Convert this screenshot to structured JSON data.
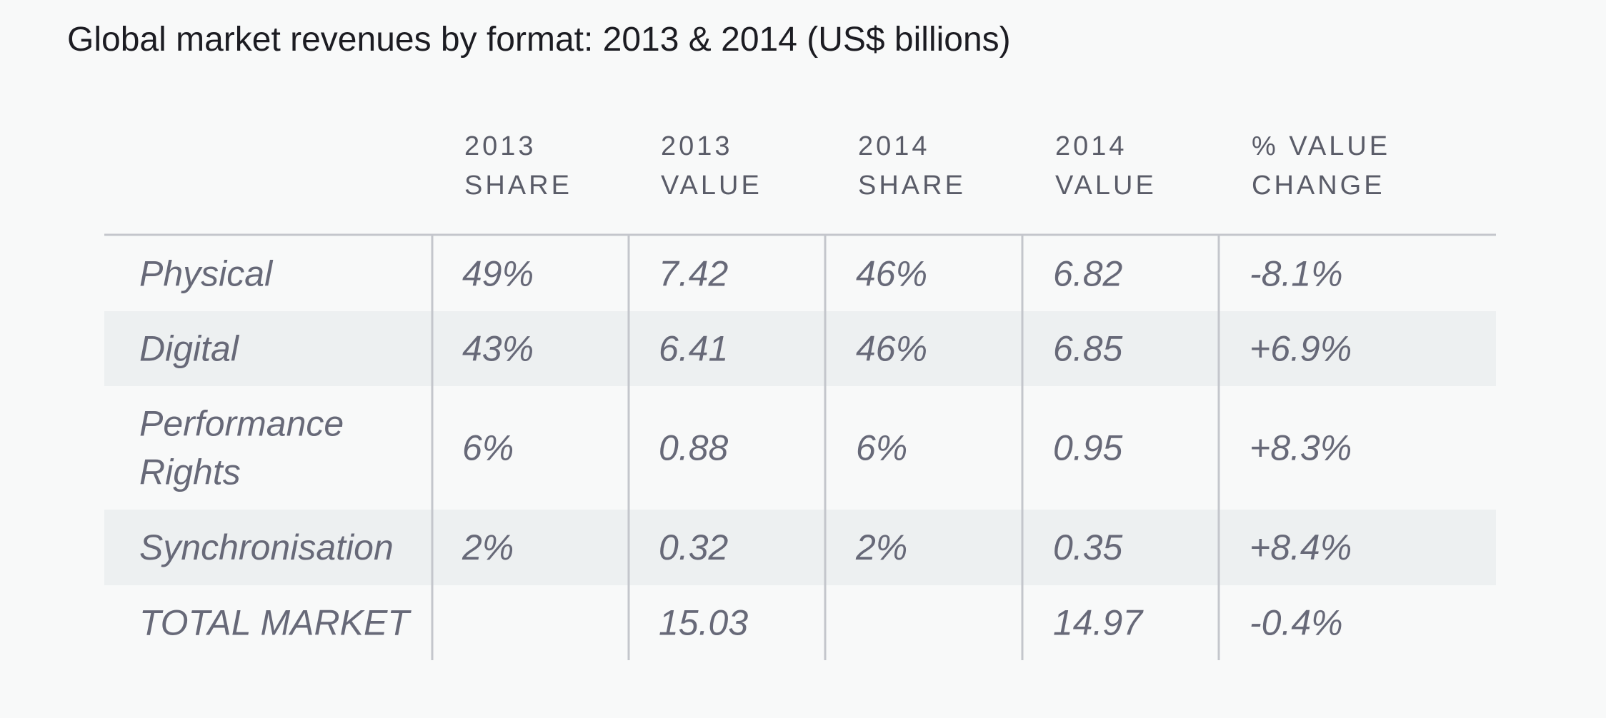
{
  "chart_data": {
    "type": "table",
    "title": "Global market revenues by format: 2013 & 2014 (US$ billions)",
    "columns": [
      [
        "2013",
        "SHARE"
      ],
      [
        "2013",
        "VALUE"
      ],
      [
        "2014",
        "SHARE"
      ],
      [
        "2014",
        "VALUE"
      ],
      [
        "% VALUE",
        "CHANGE"
      ]
    ],
    "rows": [
      {
        "label": [
          "Physical"
        ],
        "cells": [
          "49%",
          "7.42",
          "46%",
          "6.82",
          "-8.1%"
        ],
        "shaded": false
      },
      {
        "label": [
          "Digital"
        ],
        "cells": [
          "43%",
          "6.41",
          "46%",
          "6.85",
          "+6.9%"
        ],
        "shaded": true
      },
      {
        "label": [
          "Performance",
          "Rights"
        ],
        "cells": [
          "6%",
          "0.88",
          "6%",
          "0.95",
          "+8.3%"
        ],
        "shaded": false
      },
      {
        "label": [
          "Synchronisation"
        ],
        "cells": [
          "2%",
          "0.32",
          "2%",
          "0.35",
          "+8.4%"
        ],
        "shaded": true
      },
      {
        "label": [
          "TOTAL MARKET"
        ],
        "cells": [
          "",
          "15.03",
          "",
          "14.97",
          "-0.4%"
        ],
        "shaded": false
      }
    ],
    "colors": {
      "row_shade": "#edf0f1",
      "rule": "#c4c6cc",
      "header_text": "#5a5c68",
      "cell_text": "#676978"
    }
  }
}
